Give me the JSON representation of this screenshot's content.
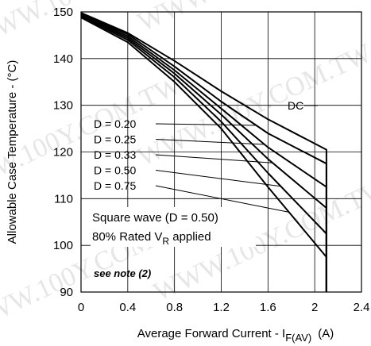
{
  "watermark": {
    "texts": [
      "WWW.100Y.COM.TW",
      "WWW.100Y.COM.TW",
      "WWW.100Y.COM.TW",
      "WWW.100Y.COM.TW",
      "WWW.100Y.COM.TW",
      "WWW.100Y.COM.TW"
    ]
  },
  "chart_data": {
    "type": "line",
    "title": "",
    "xlabel_main": "Average Forward Current - I",
    "xlabel_sub": "F(AV)",
    "xlabel_unit": "(A)",
    "ylabel": "Allowable Case Temperature - (°C)",
    "xlim": [
      0,
      2.4
    ],
    "ylim": [
      90,
      150
    ],
    "x_ticks": [
      "0",
      "0.4",
      "0.8",
      "1.2",
      "1.6",
      "2",
      "2.4"
    ],
    "y_ticks": [
      "90",
      "100",
      "110",
      "120",
      "130",
      "140",
      "150"
    ],
    "grid": true,
    "vertical_drop_x": 2.1,
    "series": [
      {
        "name": "DC",
        "x": [
          0,
          0.4,
          0.8,
          1.2,
          1.6,
          2.1,
          2.1
        ],
        "y": [
          149.8,
          145.5,
          139.5,
          133.0,
          127.0,
          120.5,
          90
        ]
      },
      {
        "name": "D = 0.20",
        "x": [
          0,
          0.4,
          0.8,
          1.2,
          1.6,
          2.1,
          2.1
        ],
        "y": [
          149.6,
          145.2,
          138.3,
          130.8,
          124.0,
          117.5,
          90
        ]
      },
      {
        "name": "D = 0.25",
        "x": [
          0,
          0.4,
          0.8,
          1.2,
          1.6,
          2.1,
          2.1
        ],
        "y": [
          149.4,
          144.8,
          137.5,
          129.3,
          121.0,
          112.5,
          90
        ]
      },
      {
        "name": "D = 0.33",
        "x": [
          0,
          0.4,
          0.8,
          1.2,
          1.6,
          2.1,
          2.1
        ],
        "y": [
          149.2,
          144.4,
          136.8,
          128.0,
          118.5,
          108.0,
          90
        ]
      },
      {
        "name": "D = 0.50",
        "x": [
          0,
          0.4,
          0.8,
          1.2,
          1.6,
          2.1,
          2.1
        ],
        "y": [
          149.0,
          144.0,
          136.0,
          126.5,
          115.5,
          102.5,
          90
        ]
      },
      {
        "name": "D = 0.75",
        "x": [
          0,
          0.4,
          0.8,
          1.2,
          1.6,
          2.1,
          2.1
        ],
        "y": [
          148.8,
          143.5,
          135.0,
          125.0,
          112.5,
          97.5,
          90
        ]
      }
    ],
    "duty_labels": [
      "D = 0.20",
      "D = 0.25",
      "D = 0.33",
      "D = 0.50",
      "D = 0.75"
    ],
    "dc_label": "DC",
    "annotation_line1": "Square wave (D = 0.50)",
    "annotation_line2_pre": "80% Rated V",
    "annotation_line2_sub": "R",
    "annotation_line2_post": " applied",
    "note": "see note (2)"
  }
}
